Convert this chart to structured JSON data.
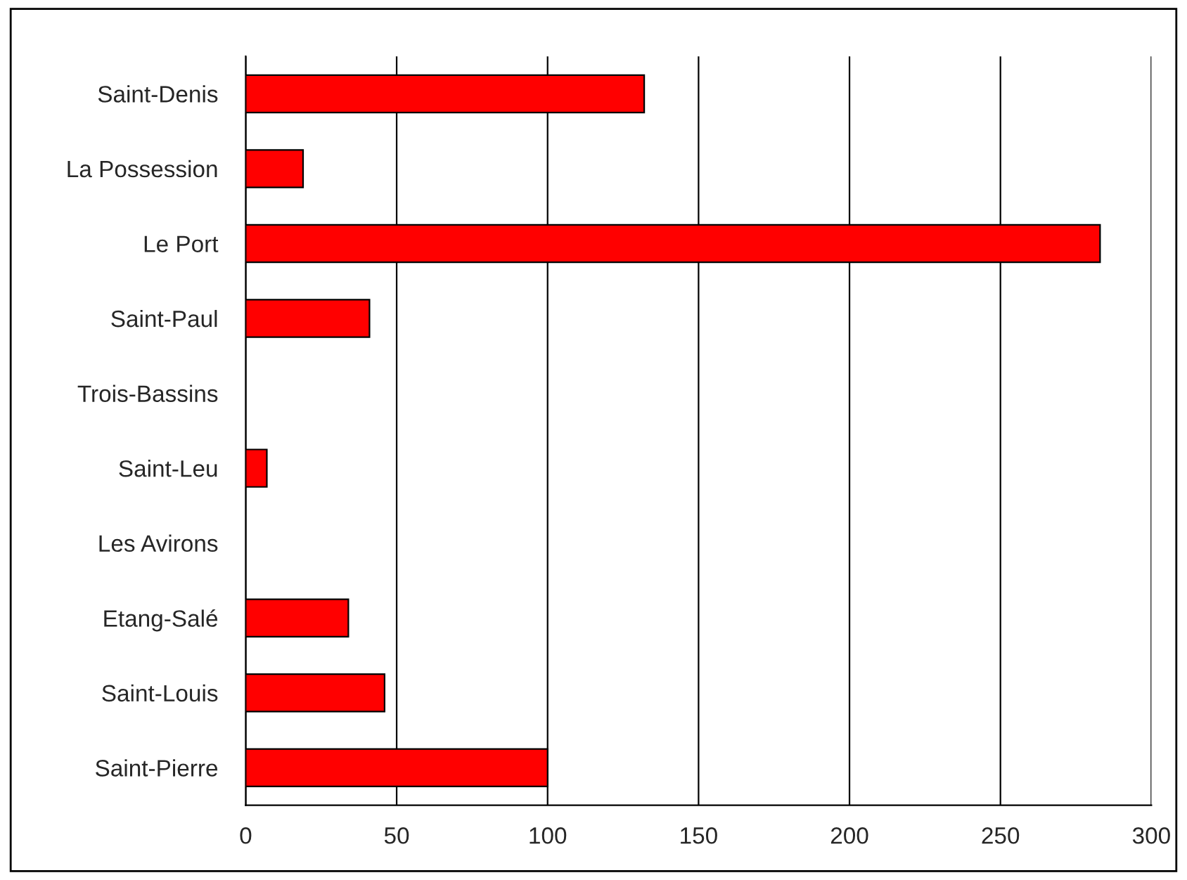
{
  "chart_data": {
    "type": "bar",
    "orientation": "horizontal",
    "categories": [
      "Saint-Denis",
      "La Possession",
      "Le Port",
      "Saint-Paul",
      "Trois-Bassins",
      "Saint-Leu",
      "Les Avirons",
      "Etang-Salé",
      "Saint-Louis",
      "Saint-Pierre"
    ],
    "values": [
      132,
      19,
      283,
      41,
      0,
      7,
      0,
      34,
      46,
      100
    ],
    "color": "#ff0000",
    "xlim": [
      0,
      300
    ],
    "xticks": [
      0,
      50,
      100,
      150,
      200,
      250,
      300
    ],
    "grid": "x"
  }
}
